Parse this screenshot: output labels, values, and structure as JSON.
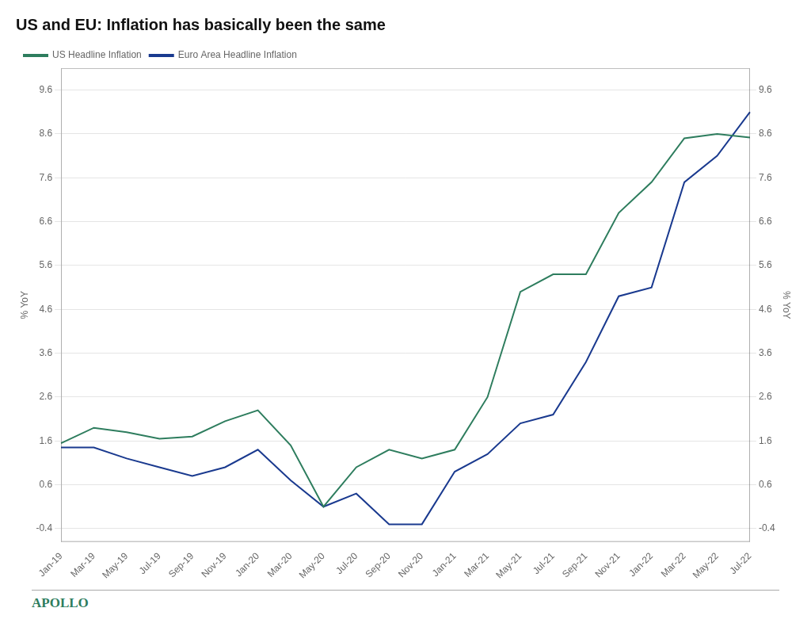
{
  "chart_data": {
    "type": "line",
    "title": "US and EU: Inflation has basically been the same",
    "ylabel": "% YoY",
    "y2label": "% YoY",
    "annotations": [
      "APOLLO"
    ],
    "categories": [
      "Jan-19",
      "Mar-19",
      "May-19",
      "Jul-19",
      "Sep-19",
      "Nov-19",
      "Jan-20",
      "Mar-20",
      "May-20",
      "Jul-20",
      "Sep-20",
      "Nov-20",
      "Jan-21",
      "Mar-21",
      "May-21",
      "Jul-21",
      "Sep-21",
      "Nov-21",
      "Jan-22",
      "Mar-22",
      "May-22",
      "Jul-22"
    ],
    "series": [
      {
        "name": "US Headline Inflation",
        "color": "#2e7d5e",
        "values": [
          1.55,
          1.9,
          1.8,
          1.65,
          1.7,
          2.05,
          2.3,
          1.5,
          0.1,
          1.0,
          1.4,
          1.2,
          1.4,
          2.6,
          5.0,
          5.4,
          5.4,
          6.8,
          7.5,
          8.5,
          8.6,
          8.52
        ]
      },
      {
        "name": "Euro Area Headline Inflation",
        "color": "#1a3a8f",
        "values": [
          1.45,
          1.45,
          1.2,
          1.0,
          0.8,
          1.0,
          1.4,
          0.7,
          0.1,
          0.4,
          -0.3,
          -0.3,
          0.9,
          1.3,
          2.0,
          2.2,
          3.4,
          4.9,
          5.1,
          7.5,
          8.1,
          9.1
        ]
      }
    ],
    "ylim": [
      -0.7,
      10.1
    ],
    "yticks": [
      -0.4,
      0.6,
      1.6,
      2.6,
      3.6,
      4.6,
      5.6,
      6.6,
      7.6,
      8.6,
      9.6
    ],
    "y2lim": [
      -0.7,
      10.1
    ],
    "y2ticks": [
      -0.4,
      0.6,
      1.6,
      2.6,
      3.6,
      4.6,
      5.6,
      6.6,
      7.6,
      8.6,
      9.6
    ],
    "grid": true,
    "legend": "upper left"
  }
}
